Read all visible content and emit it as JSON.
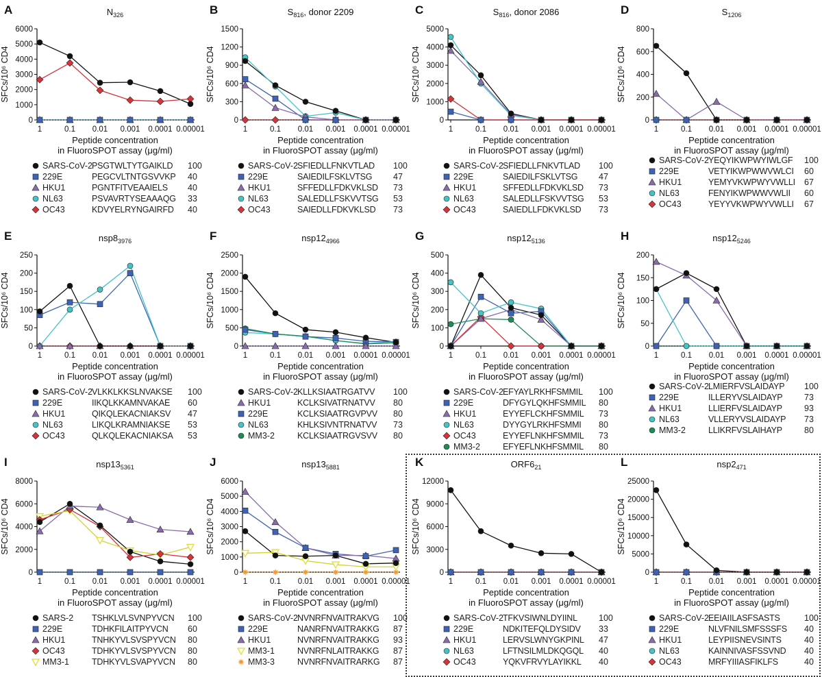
{
  "common": {
    "xticks": [
      "1",
      "0.1",
      "0.01",
      "0.001",
      "0.0001",
      "0.00001"
    ],
    "xlabel_line1": "Peptide concentration",
    "xlabel_line2": "in FluoroSPOT assay (μg/ml)",
    "ylabel": "SFCs/10⁶ CD4"
  },
  "styles": {
    "SARS-CoV-2": {
      "color": "#111111",
      "shape": "circle"
    },
    "SARS-2": {
      "color": "#111111",
      "shape": "circle"
    },
    "229E": {
      "color": "#3f63b3",
      "shape": "square"
    },
    "HKU1": {
      "color": "#8a6cae",
      "shape": "triangle"
    },
    "NL63": {
      "color": "#46c3c6",
      "shape": "circle"
    },
    "OC43": {
      "color": "#d8323a",
      "shape": "diamond"
    },
    "MM3-2": {
      "color": "#1f8c57",
      "shape": "circle"
    },
    "MM3-1": {
      "color": "#e2dd3c",
      "shape": "tri-down-open"
    },
    "MM3-3": {
      "color": "#f39a2a",
      "shape": "star"
    }
  },
  "chart_data": [
    {
      "letter": "A",
      "type": "line",
      "title_base": "N",
      "title_sub": "326",
      "title_suffix": "",
      "ylim": [
        0,
        6000
      ],
      "yticks": [
        0,
        1000,
        2000,
        3000,
        4000,
        5000,
        6000
      ],
      "series": [
        {
          "name": "SARS-CoV-2",
          "seq": "PSGTWLTYTGAIKLD",
          "pct": "100",
          "values": [
            5100,
            4200,
            2450,
            2480,
            1900,
            1050
          ]
        },
        {
          "name": "229E",
          "seq": "PEGCVLTNTGSVVKP",
          "pct": "40",
          "values": [
            0,
            0,
            0,
            0,
            0,
            0
          ]
        },
        {
          "name": "HKU1",
          "seq": "PGNTFITVEAAIELS",
          "pct": "40",
          "values": [
            0,
            0,
            0,
            0,
            0,
            0
          ]
        },
        {
          "name": "NL63",
          "seq": "PSVAVRTYSEAAAQG",
          "pct": "33",
          "values": [
            0,
            0,
            0,
            0,
            0,
            0
          ]
        },
        {
          "name": "OC43",
          "seq": "KDVYELRYNGAIRFD",
          "pct": "40",
          "values": [
            2650,
            3750,
            1950,
            1300,
            1220,
            1380
          ]
        }
      ]
    },
    {
      "letter": "B",
      "type": "line",
      "title_base": "S",
      "title_sub": "816",
      "title_suffix": ", donor 2209",
      "ylim": [
        0,
        1500
      ],
      "yticks": [
        0,
        300,
        600,
        900,
        1200,
        1500
      ],
      "series": [
        {
          "name": "SARS-CoV-2",
          "seq": "SFIEDLLFNKVTLAD",
          "pct": "100",
          "values": [
            970,
            570,
            300,
            150,
            0,
            0
          ]
        },
        {
          "name": "229E",
          "seq": "SAIEDILFSKLVTSG",
          "pct": "47",
          "values": [
            670,
            350,
            0,
            0,
            0,
            0
          ]
        },
        {
          "name": "HKU1",
          "seq": "SFFEDLLFDKVKLSD",
          "pct": "73",
          "values": [
            570,
            200,
            50,
            0,
            0,
            0
          ]
        },
        {
          "name": "NL63",
          "seq": "SALEDLLFSKVVTSG",
          "pct": "53",
          "values": [
            1030,
            550,
            60,
            120,
            0,
            0
          ]
        },
        {
          "name": "OC43",
          "seq": "SAIEDLLFDKVKLSD",
          "pct": "73",
          "values": [
            0,
            0,
            0,
            0,
            0,
            0
          ]
        }
      ]
    },
    {
      "letter": "C",
      "type": "line",
      "title_base": "S",
      "title_sub": "816",
      "title_suffix": ", donor 2086",
      "ylim": [
        0,
        5000
      ],
      "yticks": [
        0,
        1000,
        2000,
        3000,
        4000,
        5000
      ],
      "series": [
        {
          "name": "SARS-CoV-2",
          "seq": "SFIEDLLFNKVTLAD",
          "pct": "100",
          "values": [
            4100,
            2450,
            350,
            0,
            0,
            0
          ]
        },
        {
          "name": "229E",
          "seq": "SAIEDILFSKLVTSG",
          "pct": "47",
          "values": [
            450,
            0,
            0,
            0,
            0,
            0
          ]
        },
        {
          "name": "HKU1",
          "seq": "SFFEDLLFDKVKLSD",
          "pct": "73",
          "values": [
            3800,
            2100,
            300,
            0,
            0,
            0
          ]
        },
        {
          "name": "NL63",
          "seq": "SALEDLLFSKVVTSG",
          "pct": "53",
          "values": [
            4550,
            2000,
            250,
            0,
            0,
            0
          ]
        },
        {
          "name": "OC43",
          "seq": "SAIEDLLFDKVKLSD",
          "pct": "73",
          "values": [
            1150,
            0,
            0,
            0,
            0,
            0
          ]
        }
      ]
    },
    {
      "letter": "D",
      "type": "line",
      "title_base": "S",
      "title_sub": "1206",
      "title_suffix": "",
      "ylim": [
        0,
        800
      ],
      "yticks": [
        0,
        200,
        400,
        600,
        800
      ],
      "series": [
        {
          "name": "SARS-CoV-2",
          "seq": "YEQYIKWPWYIWLGF",
          "pct": "100",
          "values": [
            650,
            410,
            0,
            0,
            0,
            0
          ]
        },
        {
          "name": "229E",
          "seq": "VETYIKWPWWVWLCI",
          "pct": "60",
          "values": [
            0,
            0,
            0,
            0,
            0,
            0
          ]
        },
        {
          "name": "HKU1",
          "seq": "YEMYVKWPWYVWLLI",
          "pct": "67",
          "values": [
            230,
            0,
            160,
            0,
            0,
            0
          ]
        },
        {
          "name": "NL63",
          "seq": "FENYIKWPWWVWLII",
          "pct": "60",
          "values": [
            0,
            0,
            0,
            0,
            0,
            0
          ]
        },
        {
          "name": "OC43",
          "seq": "YEYYVKWPWYVWLLI",
          "pct": "67",
          "values": [
            0,
            0,
            0,
            0,
            0,
            0
          ]
        }
      ]
    },
    {
      "letter": "E",
      "type": "line",
      "title_base": "nsp8",
      "title_sub": "3976",
      "title_suffix": "",
      "ylim": [
        0,
        250
      ],
      "yticks": [
        0,
        50,
        100,
        150,
        200,
        250
      ],
      "series": [
        {
          "name": "SARS-CoV-2",
          "seq": "VLKKLKKSLNVAKSE",
          "pct": "100",
          "values": [
            95,
            165,
            0,
            0,
            0,
            0
          ]
        },
        {
          "name": "229E",
          "seq": "IIKQLKKAMNVAKAE",
          "pct": "60",
          "values": [
            85,
            120,
            115,
            200,
            0,
            0
          ]
        },
        {
          "name": "HKU1",
          "seq": "QIKQLEKACNIAKSV",
          "pct": "47",
          "values": [
            0,
            0,
            0,
            0,
            0,
            0
          ]
        },
        {
          "name": "NL63",
          "seq": "LIKQLKRAMNIAKSE",
          "pct": "53",
          "values": [
            0,
            100,
            155,
            220,
            0,
            0
          ]
        },
        {
          "name": "OC43",
          "seq": "QLKQLEKACNIAKSA",
          "pct": "53",
          "values": [
            0,
            0,
            0,
            0,
            0,
            0
          ]
        }
      ]
    },
    {
      "letter": "F",
      "type": "line",
      "title_base": "nsp12",
      "title_sub": "4966",
      "title_suffix": "",
      "ylim": [
        0,
        2500
      ],
      "yticks": [
        0,
        500,
        1000,
        1500,
        2000,
        2500
      ],
      "series": [
        {
          "name": "SARS-CoV-2",
          "seq": "KLLKSIAATRGATVV",
          "pct": "100",
          "values": [
            1900,
            900,
            450,
            380,
            230,
            100
          ]
        },
        {
          "name": "HKU1",
          "seq": "KCLKSIVATRNATVV",
          "pct": "80",
          "values": [
            0,
            0,
            0,
            0,
            0,
            0
          ]
        },
        {
          "name": "229E",
          "seq": "KCLKSIAATRGVPVV",
          "pct": "80",
          "values": [
            450,
            330,
            260,
            220,
            130,
            110
          ]
        },
        {
          "name": "NL63",
          "seq": "KHLKSIVNTRNATVV",
          "pct": "73",
          "values": [
            370,
            330,
            260,
            150,
            70,
            120
          ]
        },
        {
          "name": "MM3-2",
          "seq": "KCLKSIAATRGVSVV",
          "pct": "80",
          "values": [
            480,
            330,
            270,
            150,
            60,
            90
          ]
        }
      ]
    },
    {
      "letter": "G",
      "type": "line",
      "title_base": "nsp12",
      "title_sub": "5136",
      "title_suffix": "",
      "ylim": [
        0,
        500
      ],
      "yticks": [
        0,
        100,
        200,
        300,
        400,
        500
      ],
      "series": [
        {
          "name": "SARS-CoV-2",
          "seq": "EFYAYLRKHFSMMIL",
          "pct": "100",
          "values": [
            0,
            390,
            210,
            170,
            0,
            0
          ]
        },
        {
          "name": "229E",
          "seq": "DFYGYLQKHFSMMIL",
          "pct": "80",
          "values": [
            0,
            270,
            180,
            190,
            0,
            0
          ]
        },
        {
          "name": "HKU1",
          "seq": "EYYEFLCKHFSMMIL",
          "pct": "73",
          "values": [
            0,
            150,
            200,
            145,
            0,
            0
          ]
        },
        {
          "name": "NL63",
          "seq": "DYYGYLRKHFSMMI",
          "pct": "80",
          "values": [
            350,
            180,
            240,
            205,
            0,
            0
          ]
        },
        {
          "name": "OC43",
          "seq": "EYYEFLNKHFSMMIL",
          "pct": "73",
          "values": [
            0,
            160,
            0,
            0,
            0,
            0
          ]
        },
        {
          "name": "MM3-2",
          "seq": "EFYEFLNKHFSMMIL",
          "pct": "80",
          "values": [
            120,
            150,
            145,
            0,
            0,
            0
          ]
        }
      ]
    },
    {
      "letter": "H",
      "type": "line",
      "title_base": "nsp12",
      "title_sub": "5246",
      "title_suffix": "",
      "ylim": [
        0,
        200
      ],
      "yticks": [
        0,
        50,
        100,
        150,
        200
      ],
      "series": [
        {
          "name": "SARS-CoV-2",
          "seq": "LMIERFVSLAIDAYP",
          "pct": "100",
          "values": [
            125,
            160,
            125,
            0,
            0,
            0
          ]
        },
        {
          "name": "229E",
          "seq": "ILLERYVSLAIDAYP",
          "pct": "73",
          "values": [
            0,
            100,
            0,
            0,
            0,
            0
          ]
        },
        {
          "name": "HKU1",
          "seq": "LLIERFVSLAIDAYP",
          "pct": "93",
          "values": [
            185,
            155,
            100,
            0,
            0,
            0
          ]
        },
        {
          "name": "NL63",
          "seq": "VLLERYVSLAIDAYP",
          "pct": "73",
          "values": [
            125,
            0,
            0,
            0,
            0,
            0
          ]
        },
        {
          "name": "MM3-2",
          "seq": "LLIKRFVSLAIHAYP",
          "pct": "80",
          "values": [
            0,
            0,
            0,
            0,
            0,
            0
          ]
        }
      ]
    },
    {
      "letter": "I",
      "type": "line",
      "title_base": "nsp13",
      "title_sub": "5361",
      "title_suffix": "",
      "ylim": [
        0,
        8000
      ],
      "yticks": [
        0,
        2000,
        4000,
        6000,
        8000
      ],
      "series": [
        {
          "name": "SARS-2",
          "seq": "TSHKLVLSVNPYVCN",
          "pct": "100",
          "values": [
            4400,
            6000,
            4100,
            1800,
            950,
            700
          ]
        },
        {
          "name": "229E",
          "seq": "TDHKFILAITPYVCN",
          "pct": "60",
          "values": [
            0,
            0,
            0,
            0,
            0,
            0
          ]
        },
        {
          "name": "HKU1",
          "seq": "TNHKYVLSVSPYVCN",
          "pct": "80",
          "values": [
            3600,
            5800,
            5700,
            4600,
            3750,
            3550
          ]
        },
        {
          "name": "OC43",
          "seq": "TDHKYVLSVSPYVCN",
          "pct": "80",
          "values": [
            4600,
            5500,
            4000,
            1300,
            1600,
            1300
          ]
        },
        {
          "name": "MM3-1",
          "seq": "TDHKYVLSVAPYVCN",
          "pct": "80",
          "values": [
            4900,
            5400,
            2800,
            1900,
            1500,
            2200
          ]
        }
      ]
    },
    {
      "letter": "J",
      "type": "line",
      "title_base": "nsp13",
      "title_sub": "5881",
      "title_suffix": "",
      "ylim": [
        0,
        6000
      ],
      "yticks": [
        0,
        1000,
        2000,
        3000,
        4000,
        5000,
        6000
      ],
      "series": [
        {
          "name": "SARS-CoV-2",
          "seq": "NVNRFNVAITRAKVG",
          "pct": "100",
          "values": [
            2700,
            1100,
            1050,
            1100,
            550,
            600
          ]
        },
        {
          "name": "229E",
          "seq": "NANRFNVAITRAKKG",
          "pct": "87",
          "values": [
            4050,
            2650,
            1600,
            1200,
            1050,
            1450
          ]
        },
        {
          "name": "HKU1",
          "seq": "NVNRFNVAITRAKKG",
          "pct": "93",
          "values": [
            5300,
            3300,
            1600,
            1100,
            1100,
            900
          ]
        },
        {
          "name": "MM3-1",
          "seq": "NVNRFNLAITRAKKG",
          "pct": "87",
          "values": [
            1250,
            1300,
            750,
            500,
            350,
            350
          ]
        },
        {
          "name": "MM3-3",
          "seq": "NVNRFNVAITRARKG",
          "pct": "87",
          "values": [
            0,
            0,
            0,
            0,
            0,
            0
          ]
        }
      ]
    },
    {
      "letter": "K",
      "type": "line",
      "title_base": "ORF6",
      "title_sub": "21",
      "title_suffix": "",
      "ylim": [
        0,
        12000
      ],
      "yticks": [
        0,
        3000,
        6000,
        9000,
        12000
      ],
      "series": [
        {
          "name": "SARS-CoV-2",
          "seq": "TFKVSIWNLDYIINL",
          "pct": "100",
          "values": [
            10800,
            5400,
            3500,
            2500,
            2400,
            0
          ]
        },
        {
          "name": "229E",
          "seq": "NDKITEFQLDYSIDV",
          "pct": "33",
          "values": [
            0,
            0,
            0,
            0,
            0,
            0
          ]
        },
        {
          "name": "HKU1",
          "seq": "LERVSLWNYGKPINL",
          "pct": "47",
          "values": [
            0,
            0,
            0,
            0,
            0,
            0
          ]
        },
        {
          "name": "NL63",
          "seq": "LFTNSILMLDKQGQL",
          "pct": "40",
          "values": [
            0,
            0,
            0,
            0,
            0,
            0
          ]
        },
        {
          "name": "OC43",
          "seq": "YQKVFRVYLAYIKKL",
          "pct": "40",
          "values": [
            0,
            0,
            0,
            0,
            0,
            0
          ]
        }
      ]
    },
    {
      "letter": "L",
      "type": "line",
      "title_base": "nsp2",
      "title_sub": "471",
      "title_suffix": "",
      "ylim": [
        0,
        25000
      ],
      "yticks": [
        0,
        5000,
        10000,
        15000,
        20000,
        25000
      ],
      "series": [
        {
          "name": "SARS-CoV-2",
          "seq": "EEIAIILASFSASTS",
          "pct": "100",
          "values": [
            22500,
            7600,
            500,
            0,
            0,
            0
          ]
        },
        {
          "name": "229E",
          "seq": "NLVFNILSMFSSSFS",
          "pct": "40",
          "values": [
            0,
            0,
            0,
            0,
            0,
            0
          ]
        },
        {
          "name": "HKU1",
          "seq": "LEYPIISNEVSINTS",
          "pct": "40",
          "values": [
            0,
            0,
            0,
            0,
            0,
            0
          ]
        },
        {
          "name": "NL63",
          "seq": "KAINNIVASFSSVND",
          "pct": "40",
          "values": [
            0,
            0,
            0,
            0,
            0,
            0
          ]
        },
        {
          "name": "OC43",
          "seq": "MRFYIIIASFIKLFS",
          "pct": "40",
          "values": [
            0,
            0,
            0,
            0,
            0,
            0
          ]
        }
      ]
    }
  ]
}
